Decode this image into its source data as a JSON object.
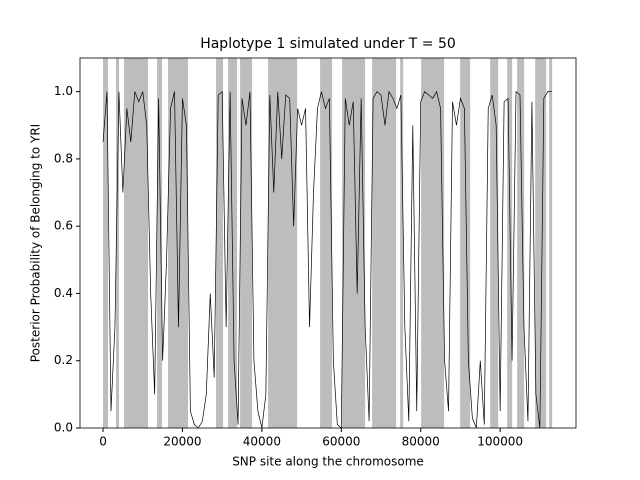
{
  "chart_data": {
    "type": "line",
    "title": "Haplotype 1 simulated under T = 50",
    "xlabel": "SNP site along the chromosome",
    "ylabel": "Posterior Probability of Belonging to YRI",
    "xlim": [
      -5800,
      119100
    ],
    "ylim": [
      0,
      1.1
    ],
    "xticks": [
      0,
      20000,
      40000,
      60000,
      80000,
      100000
    ],
    "yticks": [
      {
        "value": 0,
        "label": "0.0"
      },
      0.2,
      0.4,
      0.6,
      0.8,
      {
        "value": 1,
        "label": "1.0"
      }
    ],
    "shade_color": "#bdbdbd",
    "shaded_regions": [
      [
        0,
        1260
      ],
      [
        3275,
        4030
      ],
      [
        5290,
        11335
      ],
      [
        13600,
        14860
      ],
      [
        16370,
        21410
      ],
      [
        28460,
        30230
      ],
      [
        31490,
        33750
      ],
      [
        34510,
        37530
      ],
      [
        41560,
        48870
      ],
      [
        54660,
        57680
      ],
      [
        60200,
        65990
      ],
      [
        67760,
        73800
      ],
      [
        74810,
        75570
      ],
      [
        80100,
        85890
      ],
      [
        89930,
        92440
      ],
      [
        97480,
        99500
      ],
      [
        101760,
        103020
      ],
      [
        104280,
        106050
      ],
      [
        108820,
        111580
      ],
      [
        112340,
        113100
      ]
    ],
    "x": [
      0,
      1000,
      2000,
      3000,
      4000,
      5000,
      6000,
      7000,
      8000,
      9000,
      10000,
      11000,
      12000,
      13000,
      14000,
      15000,
      16000,
      17000,
      18000,
      19000,
      20000,
      21000,
      22000,
      23000,
      24000,
      25000,
      26000,
      27000,
      28000,
      29000,
      30000,
      31000,
      32000,
      33000,
      34000,
      35000,
      36000,
      37000,
      38000,
      39000,
      40000,
      41000,
      42000,
      43000,
      44000,
      45000,
      46000,
      47000,
      48000,
      49000,
      50000,
      51000,
      52000,
      53000,
      54000,
      55000,
      56000,
      57000,
      58000,
      59000,
      60000,
      61000,
      62000,
      63000,
      64000,
      65000,
      66000,
      67000,
      68000,
      69000,
      70000,
      71000,
      72000,
      73000,
      74000,
      75000,
      76000,
      77000,
      78000,
      79000,
      80000,
      81000,
      82000,
      83000,
      84000,
      85000,
      86000,
      87000,
      88000,
      89000,
      90000,
      91000,
      92000,
      93000,
      94000,
      95000,
      96000,
      97000,
      98000,
      99000,
      100000,
      101000,
      102000,
      103000,
      104000,
      105000,
      106000,
      107000,
      108000,
      109000,
      110000,
      111000,
      112000,
      113000
    ],
    "series": [
      {
        "color": "#000000",
        "values": [
          0.85,
          1.0,
          0.05,
          0.3,
          1.0,
          0.7,
          0.95,
          0.85,
          1.0,
          0.97,
          1.0,
          0.9,
          0.4,
          0.1,
          0.98,
          0.2,
          0.5,
          0.95,
          1.0,
          0.3,
          0.98,
          0.9,
          0.05,
          0.01,
          0.0,
          0.02,
          0.1,
          0.4,
          0.15,
          0.99,
          1.0,
          0.3,
          1.0,
          0.2,
          0.01,
          0.98,
          0.9,
          1.0,
          0.2,
          0.05,
          0.0,
          0.1,
          0.99,
          0.7,
          1.0,
          0.8,
          0.99,
          0.98,
          0.6,
          0.95,
          0.9,
          0.95,
          0.3,
          0.7,
          0.95,
          1.0,
          0.95,
          0.98,
          0.2,
          0.01,
          0.0,
          0.98,
          0.9,
          0.97,
          0.4,
          0.98,
          0.3,
          0.02,
          0.98,
          1.0,
          0.99,
          0.9,
          1.0,
          0.98,
          0.95,
          0.99,
          0.3,
          0.02,
          0.9,
          0.05,
          0.97,
          1.0,
          0.99,
          0.98,
          1.0,
          0.95,
          0.2,
          0.05,
          0.97,
          0.9,
          0.98,
          0.95,
          0.2,
          0.03,
          0.0,
          0.2,
          0.01,
          0.95,
          0.99,
          0.9,
          0.05,
          0.97,
          0.98,
          0.2,
          1.0,
          0.99,
          0.3,
          0.02,
          0.97,
          0.1,
          0.0,
          0.98,
          1.0,
          1.0
        ]
      }
    ]
  }
}
